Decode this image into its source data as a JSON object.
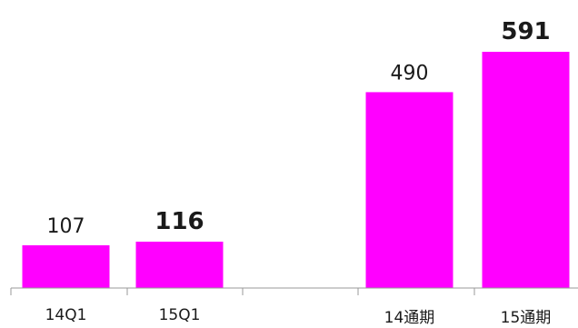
{
  "chart_data": {
    "type": "bar",
    "categories": [
      "14Q1",
      "15Q1",
      "",
      "14通期",
      "15通期"
    ],
    "values": [
      107,
      116,
      null,
      490,
      591
    ],
    "data_labels": [
      "107",
      "116",
      "",
      "490",
      "591"
    ],
    "bold_labels": [
      false,
      true,
      false,
      false,
      true
    ],
    "ylim": [
      0,
      600
    ],
    "grid": false,
    "bar_color": "#ff00ff"
  }
}
